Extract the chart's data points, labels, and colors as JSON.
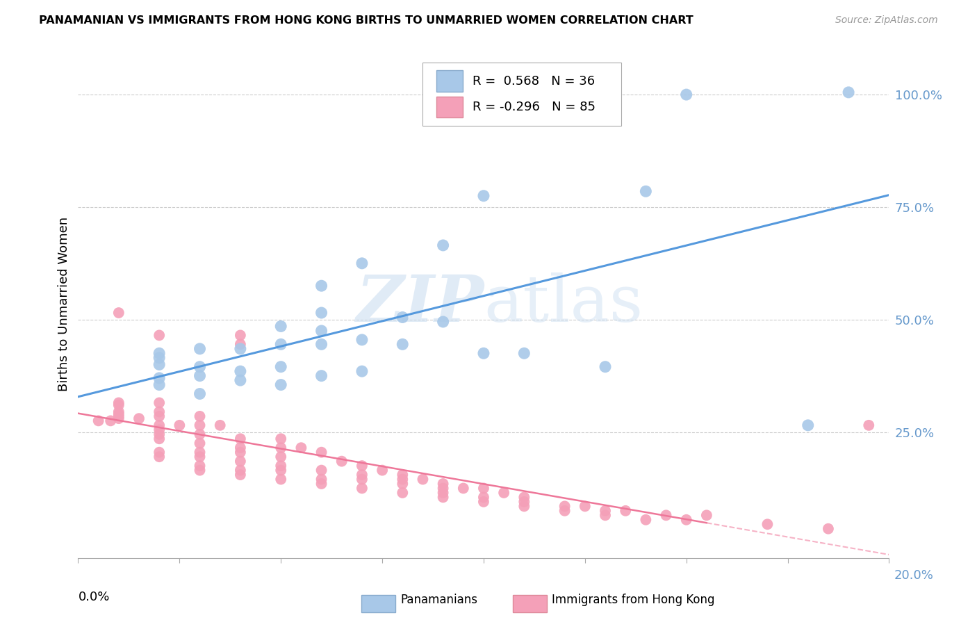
{
  "title": "PANAMANIAN VS IMMIGRANTS FROM HONG KONG BIRTHS TO UNMARRIED WOMEN CORRELATION CHART",
  "source": "Source: ZipAtlas.com",
  "ylabel": "Births to Unmarried Women",
  "blue_R": 0.568,
  "blue_N": 36,
  "pink_R": -0.296,
  "pink_N": 85,
  "blue_color": "#A8C8E8",
  "pink_color": "#F4A0B8",
  "blue_line_color": "#5599DD",
  "pink_line_color": "#EE7799",
  "pink_line_dash_color": "#F4A0B8",
  "watermark_zip": "ZIP",
  "watermark_atlas": "atlas",
  "right_ytick_color": "#6699CC",
  "blue_scatter_x": [
    0.02,
    0.02,
    0.02,
    0.02,
    0.02,
    0.03,
    0.03,
    0.03,
    0.03,
    0.04,
    0.04,
    0.04,
    0.05,
    0.05,
    0.05,
    0.05,
    0.06,
    0.06,
    0.06,
    0.06,
    0.06,
    0.07,
    0.07,
    0.07,
    0.08,
    0.08,
    0.09,
    0.09,
    0.1,
    0.1,
    0.11,
    0.13,
    0.14,
    0.15,
    0.18,
    0.19
  ],
  "blue_scatter_y": [
    0.355,
    0.37,
    0.4,
    0.415,
    0.425,
    0.335,
    0.375,
    0.395,
    0.435,
    0.365,
    0.385,
    0.435,
    0.355,
    0.395,
    0.445,
    0.485,
    0.375,
    0.445,
    0.475,
    0.515,
    0.575,
    0.385,
    0.455,
    0.625,
    0.445,
    0.505,
    0.495,
    0.665,
    0.425,
    0.775,
    0.425,
    0.395,
    0.785,
    1.0,
    0.265,
    1.005
  ],
  "pink_scatter_x": [
    0.005,
    0.008,
    0.01,
    0.01,
    0.01,
    0.01,
    0.01,
    0.01,
    0.01,
    0.015,
    0.02,
    0.02,
    0.02,
    0.02,
    0.02,
    0.02,
    0.02,
    0.02,
    0.02,
    0.02,
    0.025,
    0.03,
    0.03,
    0.03,
    0.03,
    0.03,
    0.03,
    0.03,
    0.03,
    0.035,
    0.04,
    0.04,
    0.04,
    0.04,
    0.04,
    0.04,
    0.04,
    0.04,
    0.05,
    0.05,
    0.05,
    0.05,
    0.05,
    0.05,
    0.055,
    0.06,
    0.06,
    0.06,
    0.06,
    0.065,
    0.07,
    0.07,
    0.07,
    0.07,
    0.075,
    0.08,
    0.08,
    0.08,
    0.08,
    0.085,
    0.09,
    0.09,
    0.09,
    0.09,
    0.095,
    0.1,
    0.1,
    0.1,
    0.105,
    0.11,
    0.11,
    0.11,
    0.12,
    0.12,
    0.125,
    0.13,
    0.13,
    0.135,
    0.14,
    0.145,
    0.15,
    0.155,
    0.17,
    0.185,
    0.195
  ],
  "pink_scatter_y": [
    0.275,
    0.275,
    0.28,
    0.285,
    0.29,
    0.295,
    0.31,
    0.315,
    0.515,
    0.28,
    0.195,
    0.205,
    0.235,
    0.245,
    0.255,
    0.265,
    0.285,
    0.295,
    0.315,
    0.465,
    0.265,
    0.165,
    0.175,
    0.195,
    0.205,
    0.225,
    0.245,
    0.265,
    0.285,
    0.265,
    0.155,
    0.165,
    0.185,
    0.205,
    0.215,
    0.235,
    0.445,
    0.465,
    0.145,
    0.165,
    0.175,
    0.195,
    0.215,
    0.235,
    0.215,
    0.135,
    0.145,
    0.165,
    0.205,
    0.185,
    0.125,
    0.145,
    0.155,
    0.175,
    0.165,
    0.115,
    0.135,
    0.145,
    0.155,
    0.145,
    0.105,
    0.115,
    0.125,
    0.135,
    0.125,
    0.095,
    0.105,
    0.125,
    0.115,
    0.085,
    0.095,
    0.105,
    0.075,
    0.085,
    0.085,
    0.065,
    0.075,
    0.075,
    0.055,
    0.065,
    0.055,
    0.065,
    0.045,
    0.035,
    0.265
  ]
}
